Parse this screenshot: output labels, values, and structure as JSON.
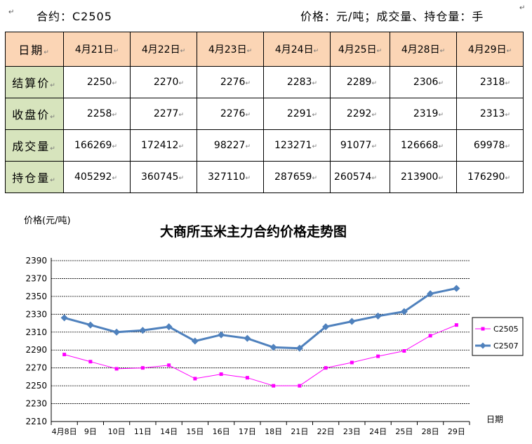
{
  "header": {
    "contract_label": "合约：C2505",
    "units_label": "价格：元/吨；成交量、持仓量：手",
    "para_mark": "↵"
  },
  "table": {
    "date_header": "日期",
    "dates": [
      "4月21日",
      "4月22日",
      "4月23日",
      "4月24日",
      "4月25日",
      "4月28日",
      "4月29日"
    ],
    "rows": [
      {
        "label": "结算价",
        "values": [
          "2250",
          "2270",
          "2276",
          "2283",
          "2289",
          "2306",
          "2318"
        ]
      },
      {
        "label": "收盘价",
        "values": [
          "2258",
          "2277",
          "2276",
          "2291",
          "2292",
          "2319",
          "2313"
        ]
      },
      {
        "label": "成交量",
        "values": [
          "166269",
          "172412",
          "98227",
          "123271",
          "91077",
          "126668",
          "69978"
        ]
      },
      {
        "label": "持仓量",
        "values": [
          "405292",
          "360745",
          "327110",
          "287659",
          "260574",
          "213900",
          "176290"
        ]
      }
    ]
  },
  "chart_data": {
    "type": "line",
    "title": "大商所玉米主力合约价格走势图",
    "ylabel": "价格(元/吨)",
    "xlabel": "日期",
    "ylim": [
      2210,
      2390
    ],
    "yticks": [
      2210,
      2230,
      2250,
      2270,
      2290,
      2310,
      2330,
      2350,
      2370,
      2390
    ],
    "grid": true,
    "legend_position": "right",
    "categories": [
      "4月8日",
      "9日",
      "10日",
      "11日",
      "14日",
      "15日",
      "16日",
      "17日",
      "18日",
      "21日",
      "22日",
      "23日",
      "24日",
      "25日",
      "28日",
      "29日"
    ],
    "series": [
      {
        "name": "C2505",
        "color": "#FF00FF",
        "marker": "square",
        "values": [
          2285,
          2277,
          2269,
          2270,
          2273,
          2258,
          2263,
          2259,
          2250,
          2250,
          2270,
          2276,
          2283,
          2289,
          2306,
          2318
        ]
      },
      {
        "name": "C2507",
        "color": "#4F81BD",
        "marker": "diamond",
        "values": [
          2326,
          2318,
          2310,
          2312,
          2316,
          2300,
          2307,
          2303,
          2293,
          2292,
          2316,
          2322,
          2328,
          2333,
          2353,
          2359
        ]
      }
    ]
  }
}
